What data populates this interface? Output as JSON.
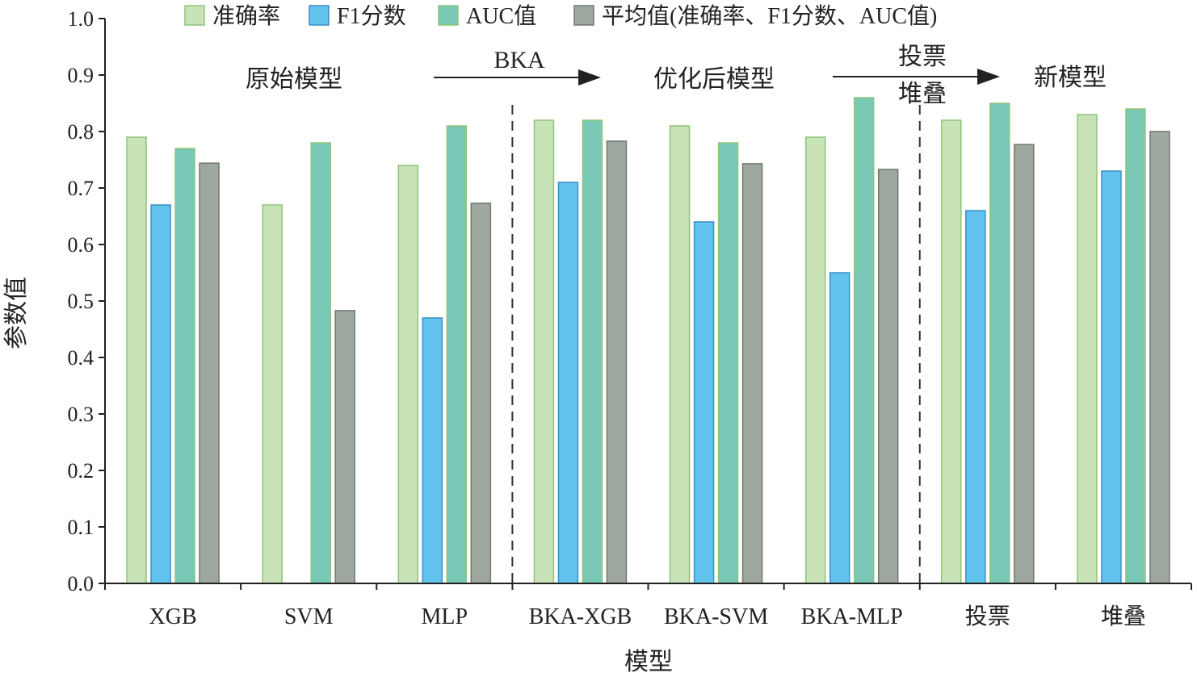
{
  "chart_data": {
    "type": "bar",
    "title": "",
    "xlabel": "模型",
    "ylabel": "参数值",
    "ylim": [
      0,
      1.0
    ],
    "yticks": [
      "0.0",
      "0.1",
      "0.2",
      "0.3",
      "0.4",
      "0.5",
      "0.6",
      "0.7",
      "0.8",
      "0.9",
      "1.0"
    ],
    "categories": [
      "XGB",
      "SVM",
      "MLP",
      "BKA-XGB",
      "BKA-SVM",
      "BKA-MLP",
      "投票",
      "堆叠"
    ],
    "series": [
      {
        "name": "准确率",
        "color": "#c8e3b8",
        "edge": "#8fc57a",
        "values": [
          0.79,
          0.67,
          0.74,
          0.82,
          0.81,
          0.79,
          0.82,
          0.83
        ]
      },
      {
        "name": "F1分数",
        "color": "#63c3ef",
        "edge": "#3a8fc4",
        "values": [
          0.67,
          0.0,
          0.47,
          0.71,
          0.64,
          0.55,
          0.66,
          0.73
        ]
      },
      {
        "name": "AUC值",
        "color": "#79c8b6",
        "edge": "#8fc57a",
        "values": [
          0.77,
          0.78,
          0.81,
          0.82,
          0.78,
          0.86,
          0.85,
          0.84
        ]
      },
      {
        "name": "平均值(准确率、F1分数、AUC值)",
        "color": "#9ea89e",
        "edge": "#6f786f",
        "values": [
          0.744,
          0.483,
          0.673,
          0.783,
          0.743,
          0.733,
          0.777,
          0.8
        ]
      }
    ],
    "legend_position": "top",
    "grid": false,
    "annotations": {
      "group1": "原始模型",
      "arrow1_label": "BKA",
      "group2": "优化后模型",
      "arrow2_label_top": "投票",
      "arrow2_label_bottom": "堆叠",
      "group3": "新模型"
    },
    "dividers_after_category": [
      2,
      5
    ]
  }
}
